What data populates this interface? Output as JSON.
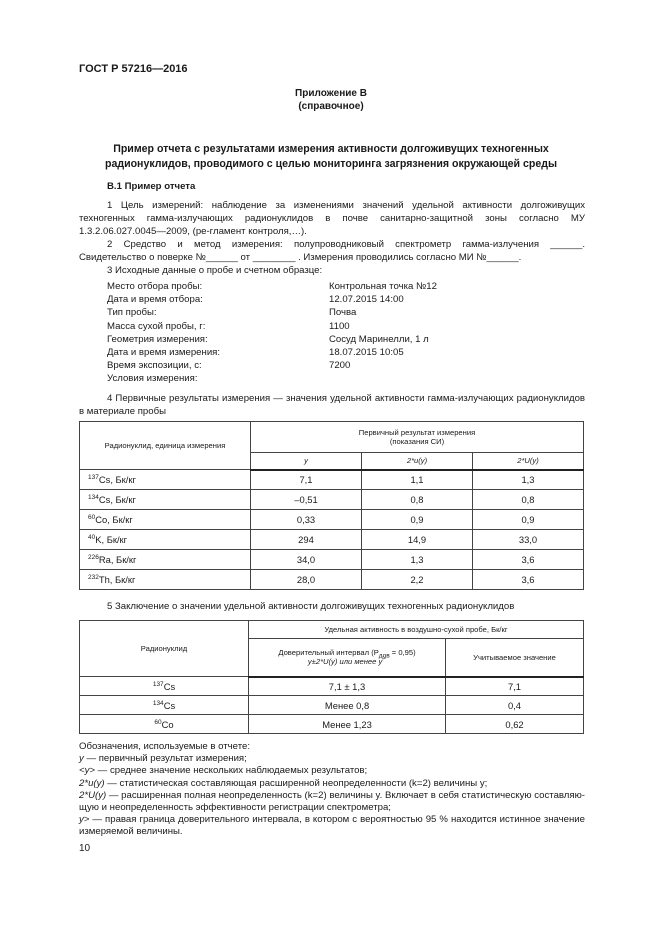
{
  "header": "ГОСТ Р 57216—2016",
  "appendix": {
    "title": "Приложение В",
    "subtitle": "(справочное)"
  },
  "heading": {
    "line1": "Пример отчета с результатами измерения активности долгоживущих техногенных",
    "line2": "радионуклидов, проводимого с целью мониторинга загрязнения окружающей среды"
  },
  "section": "В.1 Пример отчета",
  "paragraphs": [
    "1 Цель измерений: наблюдение за изменениями значений удельной активности долгоживущих техногенных гамма-излучающих радионуклидов в почве санитарно-защитной зоны согласно МУ 1.3.2.06.027.0045—2009, (ре-гламент контроля,…).",
    "2 Средство и метод измерения: полупроводниковый спектрометр гамма-излучения ______. Свидетельство о поверке №______ от ________ . Измерения проводились согласно МИ №______.",
    "3 Исходные данные о пробе и счетном образце:"
  ],
  "sample": [
    {
      "k": "Место отбора пробы:",
      "v": "Контрольная точка №12"
    },
    {
      "k": "Дата и время отбора:",
      "v": "12.07.2015 14:00"
    },
    {
      "k": "Тип пробы:",
      "v": "Почва"
    },
    {
      "k": "Масса сухой пробы, г:",
      "v": "1100"
    },
    {
      "k": "Геометрия измерения:",
      "v": "Сосуд Маринелли, 1 л"
    },
    {
      "k": "Дата и время измерения:",
      "v": "18.07.2015 10:05"
    },
    {
      "k": "Время экспозиции, с:",
      "v": "7200"
    },
    {
      "k": "Условия измерения:",
      "v": ""
    }
  ],
  "para4": "4 Первичные результаты измерения — значения удельной активности гамма-излучающих радионуклидов в материале пробы",
  "table1": {
    "h_nuclide": "Радионуклид, единица измерения",
    "h_group1": "Первичный результат измерения",
    "h_group2": "(показания СИ)",
    "h_y": "y",
    "h_u": "2*u(y)",
    "h_U": "2*U(y)",
    "rows": [
      {
        "mass": "137",
        "name": "Cs, Бк/кг",
        "y": "7,1",
        "u": "1,1",
        "U": "1,3"
      },
      {
        "mass": "134",
        "name": "Cs, Бк/кг",
        "y": "–0,51",
        "u": "0,8",
        "U": "0,8"
      },
      {
        "mass": "60",
        "name": "Co, Бк/кг",
        "y": "0,33",
        "u": "0,9",
        "U": "0,9"
      },
      {
        "mass": "40",
        "name": "K, Бк/кг",
        "y": "294",
        "u": "14,9",
        "U": "33,0"
      },
      {
        "mass": "226",
        "name": "Ra, Бк/кг",
        "y": "34,0",
        "u": "1,3",
        "U": "3,6"
      },
      {
        "mass": "232",
        "name": "Th, Бк/кг",
        "y": "28,0",
        "u": "2,2",
        "U": "3,6"
      }
    ]
  },
  "para5": "5 Заключение о значении удельной активности долгоживущих техногенных радионуклидов",
  "table2": {
    "h_nuclide": "Радионуклид",
    "h_group": "Удельная активность в воздушно-сухой пробе, Бк/кг",
    "h_ci_a": "Доверительный интервал (P",
    "h_ci_sub": "дов",
    "h_ci_b": " = 0,95)",
    "h_ci_line2": "y±2*U(y) или менее y",
    "h_ci_sup": ">",
    "h_value": "Учитываемое значение",
    "rows": [
      {
        "mass": "137",
        "name": "Cs",
        "ci": "7,1 ± 1,3",
        "val": "7,1"
      },
      {
        "mass": "134",
        "name": "Cs",
        "ci": "Менее 0,8",
        "val": "0,4"
      },
      {
        "mass": "60",
        "name": "Co",
        "ci": "Менее 1,23",
        "val": "0,62"
      }
    ]
  },
  "notes": {
    "title": "Обозначения, используемые в отчете:",
    "items": [
      {
        "sym": "y",
        "text": " — первичный результат измерения;"
      },
      {
        "sym": "<y>",
        "text": " — среднее значение нескольких наблюдаемых результатов;"
      },
      {
        "sym": "2*u(y)",
        "text": " — статистическая составляющая расширенной неопределенности (k=2) величины y;"
      },
      {
        "sym": "2*U(y)",
        "text": " — расширенная полная неопределенность (k=2) величины y. Включает в себя статистическую составляю-щую и неопределенность эффективности регистрации спектрометра;"
      },
      {
        "sym": "y>",
        "text": " — правая граница доверительного интервала, в котором с вероятностью 95 % находится истинное значение измеряемой величины."
      }
    ]
  },
  "page_number": "10"
}
